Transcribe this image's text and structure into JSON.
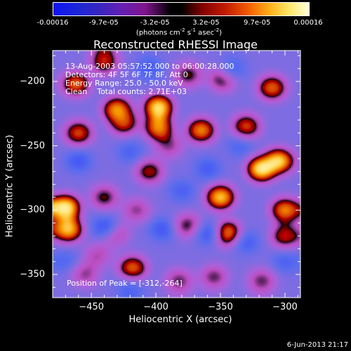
{
  "chart_data": {
    "type": "heatmap",
    "title": "Reconstructed RHESSI Image",
    "xlabel": "Heliocentric X (arcsec)",
    "ylabel": "Heliocentric Y (arcsec)",
    "xlim": [
      -480,
      -288
    ],
    "ylim": [
      -368,
      -176
    ],
    "xticks": [
      -450,
      -400,
      -350,
      -300
    ],
    "yticks": [
      -200,
      -250,
      -300,
      -350
    ],
    "colorbar": {
      "ticks": [
        "-0.00016",
        "-9.7e-05",
        "-3.2e-05",
        "3.2e-05",
        "9.7e-05",
        "0.00016"
      ],
      "units_main": "(photons cm",
      "units_exp1": "-2",
      "units_mid": " s",
      "units_exp2": "-1",
      "units_end": " asec",
      "units_exp3": "-2",
      "units_close": ")"
    },
    "annotations": {
      "time_range": "13-Aug-2003 05:57:52.000 to 06:00:28.000",
      "detectors": "Detectors: 4F 5F 6F 7F 8F, Att 0",
      "energy": "Energy Range: 25.0 - 50.0 keV",
      "clean": "Clean",
      "counts": "Total counts: 2.71E+03",
      "peak": "Position of Peak = [-312,-264]"
    },
    "peak": {
      "x": -312,
      "y": -264
    },
    "blobs": [
      {
        "x": -470,
        "y": -298,
        "v": 1.0
      },
      {
        "x": -468,
        "y": -315,
        "v": 0.9
      },
      {
        "x": -460,
        "y": -240,
        "v": 0.7
      },
      {
        "x": -462,
        "y": -202,
        "v": 0.75
      },
      {
        "x": -440,
        "y": -185,
        "v": 0.65
      },
      {
        "x": -430,
        "y": -222,
        "v": 0.85
      },
      {
        "x": -425,
        "y": -232,
        "v": 0.7
      },
      {
        "x": -440,
        "y": -290,
        "v": 0.55
      },
      {
        "x": -432,
        "y": -318,
        "v": 0.5
      },
      {
        "x": -455,
        "y": -350,
        "v": 0.45
      },
      {
        "x": -405,
        "y": -270,
        "v": 0.6
      },
      {
        "x": -398,
        "y": -220,
        "v": 0.95
      },
      {
        "x": -398,
        "y": -236,
        "v": 0.8
      },
      {
        "x": -415,
        "y": -300,
        "v": 0.45
      },
      {
        "x": -418,
        "y": -345,
        "v": 0.75
      },
      {
        "x": -375,
        "y": -195,
        "v": 0.55
      },
      {
        "x": -365,
        "y": -238,
        "v": 0.8
      },
      {
        "x": -375,
        "y": -312,
        "v": 0.55
      },
      {
        "x": -350,
        "y": -290,
        "v": 0.9
      },
      {
        "x": -345,
        "y": -318,
        "v": 0.85
      },
      {
        "x": -348,
        "y": -198,
        "v": 0.6
      },
      {
        "x": -355,
        "y": -352,
        "v": 0.5
      },
      {
        "x": -330,
        "y": -235,
        "v": 0.7
      },
      {
        "x": -318,
        "y": -268,
        "v": 1.0
      },
      {
        "x": -305,
        "y": -262,
        "v": 0.95
      },
      {
        "x": -310,
        "y": -205,
        "v": 0.75
      },
      {
        "x": -300,
        "y": -300,
        "v": 0.8
      },
      {
        "x": -300,
        "y": -320,
        "v": 0.65
      },
      {
        "x": -318,
        "y": -355,
        "v": 0.5
      },
      {
        "x": -382,
        "y": -355,
        "v": 0.5
      },
      {
        "x": -445,
        "y": -335,
        "v": 0.4
      },
      {
        "x": -390,
        "y": -250,
        "v": 0.45
      },
      {
        "x": -440,
        "y": -313,
        "v": -0.9
      },
      {
        "x": -395,
        "y": -315,
        "v": -1.0
      },
      {
        "x": -460,
        "y": -262,
        "v": -0.9
      },
      {
        "x": -405,
        "y": -190,
        "v": -0.6
      },
      {
        "x": -360,
        "y": -318,
        "v": -0.75
      },
      {
        "x": -360,
        "y": -268,
        "v": -0.6
      },
      {
        "x": -330,
        "y": -325,
        "v": -0.55
      },
      {
        "x": -420,
        "y": -255,
        "v": -0.45
      },
      {
        "x": -380,
        "y": -285,
        "v": -0.5
      },
      {
        "x": -420,
        "y": -360,
        "v": -0.4
      },
      {
        "x": -300,
        "y": -340,
        "v": -0.45
      },
      {
        "x": -340,
        "y": -190,
        "v": -0.4
      },
      {
        "x": -470,
        "y": -340,
        "v": -0.35
      },
      {
        "x": -335,
        "y": -250,
        "v": -0.4
      }
    ]
  },
  "footer": {
    "timestamp": "6-Jun-2013 21:17"
  }
}
